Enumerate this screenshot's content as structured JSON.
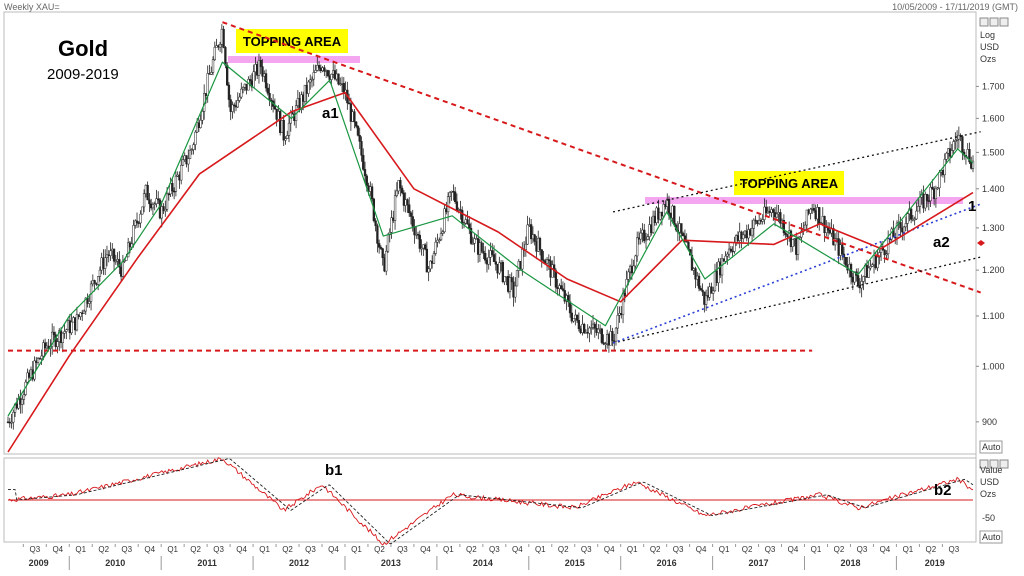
{
  "header": {
    "instrument": "Weekly XAU=",
    "date_range": "10/05/2009 - 17/11/2019 (GMT)"
  },
  "title": "Gold",
  "subtitle": "2009-2019",
  "annotations": {
    "topping_area_1": "TOPPING AREA",
    "topping_area_2": "TOPPING AREA",
    "a1": "a1",
    "a2": "a2",
    "b1": "b1",
    "b2": "b2",
    "one": "1"
  },
  "price_axis": {
    "title_lines": [
      "Log",
      "USD",
      "Ozs"
    ],
    "ticks": [
      "1.700",
      "1.600",
      "1.500",
      "1.400",
      "1.300",
      "1.200",
      "1.100",
      "1.000",
      "900"
    ],
    "auto_label": "Auto"
  },
  "osc_axis": {
    "title_lines": [
      "Value",
      "USD",
      "Ozs"
    ],
    "ticks": [
      "-50"
    ],
    "auto_label": "Auto"
  },
  "x_axis": {
    "quarters": [
      "Q3",
      "Q4",
      "Q1",
      "Q2",
      "Q3",
      "Q4",
      "Q1",
      "Q2",
      "Q3",
      "Q4",
      "Q1",
      "Q2",
      "Q3",
      "Q4",
      "Q1",
      "Q2",
      "Q3",
      "Q4",
      "Q1",
      "Q2",
      "Q3",
      "Q4",
      "Q1",
      "Q2",
      "Q3",
      "Q4",
      "Q1",
      "Q2",
      "Q3",
      "Q4",
      "Q1",
      "Q2",
      "Q3",
      "Q4",
      "Q1",
      "Q2",
      "Q3",
      "Q4",
      "Q1",
      "Q2",
      "Q3",
      "Q4",
      "Q1",
      "Q2",
      "Q3",
      "Q4"
    ],
    "years": [
      "2009",
      "2010",
      "2011",
      "2012",
      "2013",
      "2014",
      "2015",
      "2016",
      "2017",
      "2018",
      "2019"
    ]
  },
  "colors": {
    "fast_ma": "#1a9641",
    "slow_ma": "#d7191c",
    "resistance": "#d7191c",
    "channel": "#111111",
    "trend_blue": "#2b3fd6",
    "topping": "#f4a6f0",
    "label_bg": "#ffff00",
    "osc_line": "#d7191c",
    "osc_signal": "#222222"
  },
  "chart_data": {
    "type": "candlestick",
    "frequency": "weekly",
    "scale": "log",
    "y_range": [
      850,
      1950
    ],
    "x_range": [
      "2009-05-10",
      "2019-11-17"
    ],
    "price_series": [
      {
        "date": "2009-05",
        "value": 900
      },
      {
        "date": "2009-10",
        "value": 1040
      },
      {
        "date": "2010-02",
        "value": 1090
      },
      {
        "date": "2010-06",
        "value": 1240
      },
      {
        "date": "2010-08",
        "value": 1200
      },
      {
        "date": "2010-11",
        "value": 1390
      },
      {
        "date": "2011-01",
        "value": 1340
      },
      {
        "date": "2011-05",
        "value": 1510
      },
      {
        "date": "2011-09",
        "value": 1900
      },
      {
        "date": "2011-10",
        "value": 1620
      },
      {
        "date": "2012-02",
        "value": 1770
      },
      {
        "date": "2012-05",
        "value": 1550
      },
      {
        "date": "2012-10",
        "value": 1780
      },
      {
        "date": "2013-01",
        "value": 1680
      },
      {
        "date": "2013-04",
        "value": 1420
      },
      {
        "date": "2013-06",
        "value": 1200
      },
      {
        "date": "2013-08",
        "value": 1410
      },
      {
        "date": "2013-12",
        "value": 1200
      },
      {
        "date": "2014-03",
        "value": 1390
      },
      {
        "date": "2014-06",
        "value": 1260
      },
      {
        "date": "2014-09",
        "value": 1210
      },
      {
        "date": "2014-11",
        "value": 1150
      },
      {
        "date": "2015-01",
        "value": 1300
      },
      {
        "date": "2015-07",
        "value": 1090
      },
      {
        "date": "2015-12",
        "value": 1050
      },
      {
        "date": "2016-03",
        "value": 1250
      },
      {
        "date": "2016-07",
        "value": 1370
      },
      {
        "date": "2016-12",
        "value": 1130
      },
      {
        "date": "2017-03",
        "value": 1250
      },
      {
        "date": "2017-09",
        "value": 1350
      },
      {
        "date": "2017-12",
        "value": 1250
      },
      {
        "date": "2018-02",
        "value": 1360
      },
      {
        "date": "2018-08",
        "value": 1170
      },
      {
        "date": "2019-01",
        "value": 1290
      },
      {
        "date": "2019-06",
        "value": 1400
      },
      {
        "date": "2019-09",
        "value": 1550
      },
      {
        "date": "2019-11",
        "value": 1470
      }
    ],
    "fast_ma_series": [
      {
        "date": "2009-05",
        "value": 910
      },
      {
        "date": "2010-01",
        "value": 1100
      },
      {
        "date": "2010-08",
        "value": 1220
      },
      {
        "date": "2011-01",
        "value": 1360
      },
      {
        "date": "2011-09",
        "value": 1780
      },
      {
        "date": "2012-06",
        "value": 1600
      },
      {
        "date": "2012-11",
        "value": 1720
      },
      {
        "date": "2013-06",
        "value": 1280
      },
      {
        "date": "2014-03",
        "value": 1330
      },
      {
        "date": "2014-12",
        "value": 1200
      },
      {
        "date": "2015-11",
        "value": 1080
      },
      {
        "date": "2016-07",
        "value": 1340
      },
      {
        "date": "2016-12",
        "value": 1180
      },
      {
        "date": "2017-09",
        "value": 1310
      },
      {
        "date": "2018-08",
        "value": 1190
      },
      {
        "date": "2019-09",
        "value": 1510
      },
      {
        "date": "2019-11",
        "value": 1470
      }
    ],
    "slow_ma_series": [
      {
        "date": "2009-05",
        "value": 850
      },
      {
        "date": "2010-01",
        "value": 1020
      },
      {
        "date": "2010-10",
        "value": 1230
      },
      {
        "date": "2011-06",
        "value": 1440
      },
      {
        "date": "2012-06",
        "value": 1620
      },
      {
        "date": "2013-01",
        "value": 1680
      },
      {
        "date": "2013-10",
        "value": 1400
      },
      {
        "date": "2014-09",
        "value": 1290
      },
      {
        "date": "2015-06",
        "value": 1180
      },
      {
        "date": "2016-01",
        "value": 1130
      },
      {
        "date": "2016-09",
        "value": 1270
      },
      {
        "date": "2017-09",
        "value": 1260
      },
      {
        "date": "2018-03",
        "value": 1310
      },
      {
        "date": "2018-11",
        "value": 1250
      },
      {
        "date": "2019-11",
        "value": 1390
      }
    ],
    "lines": [
      {
        "name": "long-term resistance",
        "style": "dashed",
        "from": {
          "date": "2011-09",
          "value": 1920
        },
        "to": {
          "date": "2019-12",
          "value": 1150
        }
      },
      {
        "name": "support",
        "style": "dashed",
        "from": {
          "date": "2009-05",
          "value": 1030
        },
        "to": {
          "date": "2018-02",
          "value": 1030
        }
      },
      {
        "name": "channel upper",
        "style": "dotted",
        "from": {
          "date": "2015-12",
          "value": 1340
        },
        "to": {
          "date": "2019-12",
          "value": 1560
        }
      },
      {
        "name": "channel lower",
        "style": "dotted",
        "from": {
          "date": "2015-12",
          "value": 1045
        },
        "to": {
          "date": "2019-12",
          "value": 1230
        }
      },
      {
        "name": "blue trend",
        "style": "dotted",
        "from": {
          "date": "2015-12",
          "value": 1045
        },
        "to": {
          "date": "2019-12",
          "value": 1360
        }
      }
    ],
    "oscillator": {
      "zero_line_value": 0,
      "tick": -50,
      "line_series": [
        {
          "date": "2009-05",
          "value": 0
        },
        {
          "date": "2010-01",
          "value": 20
        },
        {
          "date": "2011-09",
          "value": 160
        },
        {
          "date": "2012-05",
          "value": -40
        },
        {
          "date": "2012-10",
          "value": 60
        },
        {
          "date": "2013-06",
          "value": -170
        },
        {
          "date": "2014-03",
          "value": 20
        },
        {
          "date": "2015-07",
          "value": -30
        },
        {
          "date": "2016-03",
          "value": 70
        },
        {
          "date": "2016-12",
          "value": -60
        },
        {
          "date": "2018-03",
          "value": 20
        },
        {
          "date": "2018-08",
          "value": -30
        },
        {
          "date": "2019-09",
          "value": 80
        },
        {
          "date": "2019-11",
          "value": 40
        }
      ]
    }
  }
}
